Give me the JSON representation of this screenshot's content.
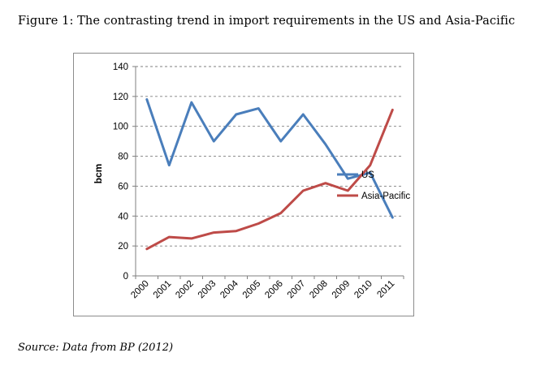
{
  "figure": {
    "title": "Figure 1: The contrasting trend in import requirements in the US and Asia-Pacific",
    "source": "Source: Data from BP (2012)"
  },
  "chart_data": {
    "type": "line",
    "x": [
      "2000",
      "2001",
      "2002",
      "2003",
      "2004",
      "2005",
      "2006",
      "2007",
      "2008",
      "2009",
      "2010",
      "2011"
    ],
    "series": [
      {
        "name": "US",
        "color": "#4a7ebb",
        "values": [
          118,
          74,
          116,
          90,
          108,
          112,
          90,
          108,
          88,
          65,
          69,
          39
        ]
      },
      {
        "name": "Asia-Pacific",
        "color": "#be4b48",
        "values": [
          18,
          26,
          25,
          29,
          30,
          35,
          42,
          57,
          62,
          57,
          74,
          111
        ]
      }
    ],
    "ylabel": "bcm",
    "ylim": [
      0,
      140
    ],
    "yticks": [
      0,
      20,
      40,
      60,
      80,
      100,
      120,
      140
    ],
    "grid": true,
    "legend_position": "right"
  }
}
